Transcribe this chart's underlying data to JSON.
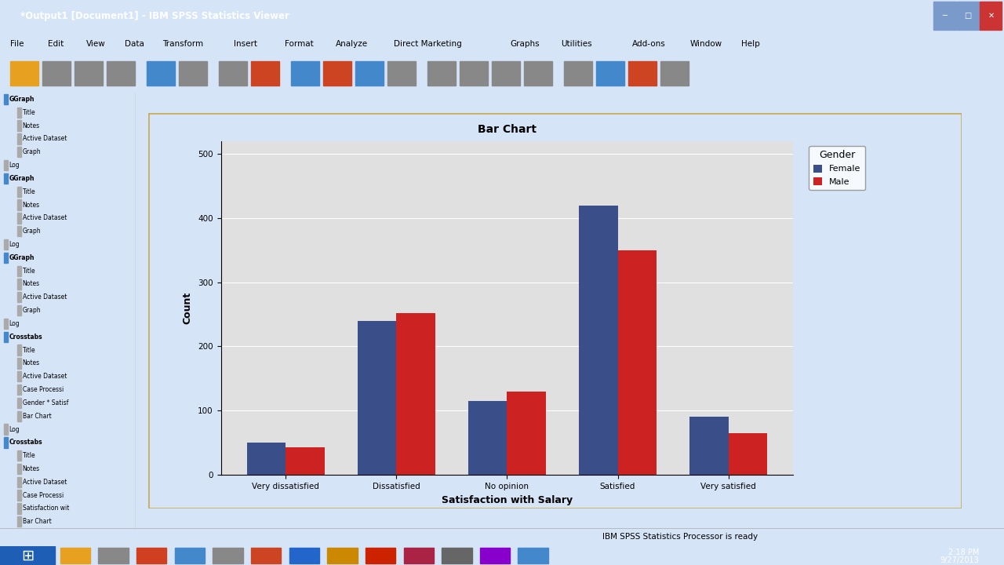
{
  "title": "Bar Chart",
  "xlabel": "Satisfaction with Salary",
  "ylabel": "Count",
  "categories": [
    "Very dissatisfied",
    "Dissatisfied",
    "No opinion",
    "Satisfied",
    "Very satisfied"
  ],
  "female_values": [
    50,
    240,
    115,
    420,
    90
  ],
  "male_values": [
    42,
    252,
    130,
    350,
    65
  ],
  "female_color": "#3a4f8a",
  "male_color": "#cc2222",
  "plot_bg_color": "#e0e0e0",
  "legend_title": "Gender",
  "legend_labels": [
    "Female",
    "Male"
  ],
  "ylim": [
    0,
    520
  ],
  "yticks": [
    0,
    100,
    200,
    300,
    400,
    500
  ],
  "bar_width": 0.35,
  "title_fontsize": 10,
  "axis_label_fontsize": 9,
  "tick_fontsize": 7.5,
  "legend_title_fontsize": 9,
  "legend_fontsize": 8,
  "win_title": "*Output1 [Document1] - IBM SPSS Statistics Viewer",
  "menu_items": [
    "File",
    "Edit",
    "View",
    "Data",
    "Transform",
    "Insert",
    "Format",
    "Analyze",
    "Direct Marketing",
    "Graphs",
    "Utilities",
    "Add-ons",
    "Window",
    "Help"
  ],
  "tree_items": [
    "GGraph",
    "Title",
    "Notes",
    "Active Dataset",
    "Graph",
    "Log",
    "GGraph",
    "Title",
    "Notes",
    "Active Dataset",
    "Graph",
    "Log",
    "GGraph",
    "Title",
    "Notes",
    "Active Dataset",
    "Graph",
    "Log",
    "Crosstabs",
    "Title",
    "Notes",
    "Active Dataset",
    "Case Processi",
    "Gender * Satisf",
    "Bar Chart",
    "Log",
    "Crosstabs",
    "Title",
    "Notes",
    "Active Dataset",
    "Case Processi",
    "Satisfaction wit",
    "Bar Chart"
  ],
  "status_text": "IBM SPSS Statistics Processor is ready",
  "taskbar_time": "2:18 PM",
  "taskbar_date": "9/27/2013",
  "win_bg": "#d6e4f7",
  "title_bar_color": "#4a6fa5",
  "menu_bar_color": "#dce6f5",
  "sidebar_bg": "#ffffff",
  "content_bg": "#b8c8d8",
  "panel_border_color": "#c8b060",
  "panel_bg": "#fdfaf0",
  "taskbar_bg": "#1a3a6b"
}
